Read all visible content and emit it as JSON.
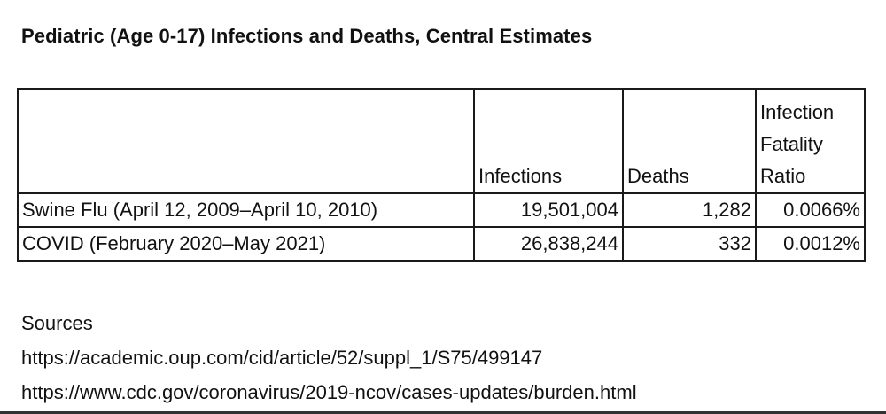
{
  "title": "Pediatric (Age 0-17) Infections and Deaths, Central Estimates",
  "table": {
    "headers": {
      "label": "",
      "infections": "Infections",
      "deaths": "Deaths",
      "ifr_line1": "Infection",
      "ifr_line2": "Fatality",
      "ifr_line3": "Ratio"
    },
    "rows": [
      {
        "label": "Swine Flu (April 12, 2009–April 10, 2010)",
        "infections": "19,501,004",
        "deaths": "1,282",
        "ifr": "0.0066%"
      },
      {
        "label": "COVID (February 2020–May 2021)",
        "infections": "26,838,244",
        "deaths": "332",
        "ifr": "0.0012%"
      }
    ]
  },
  "sources": {
    "heading": "Sources",
    "links": [
      "https://academic.oup.com/cid/article/52/suppl_1/S75/499147",
      "https://www.cdc.gov/coronavirus/2019-ncov/cases-updates/burden.html"
    ]
  }
}
